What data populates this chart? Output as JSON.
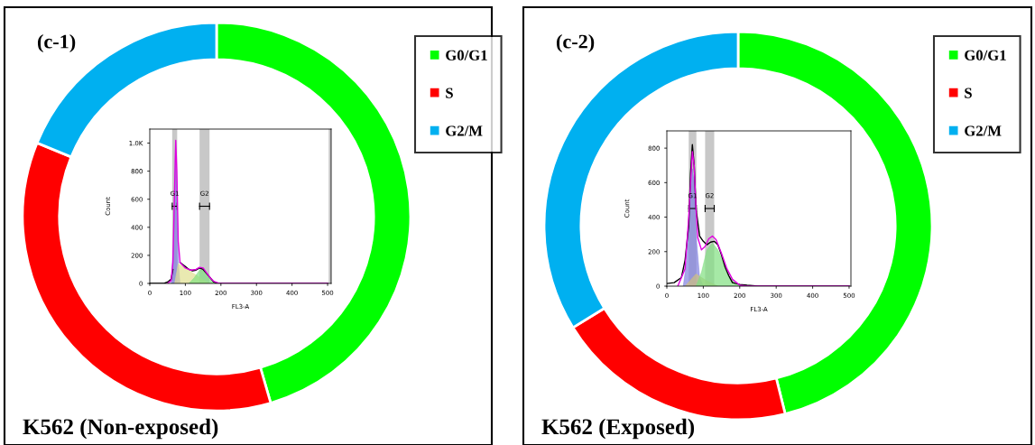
{
  "chart_data": [
    {
      "type": "donut",
      "title": "(c-1)",
      "categories": [
        "G0/G1",
        "S",
        "G2/M"
      ],
      "values": [
        45.5,
        35.7,
        18.8
      ],
      "colors": [
        "#00ff00",
        "#ff0000",
        "#00b0f0"
      ],
      "legend": "right",
      "annotations": [
        "K562 (Non-exposed)"
      ]
    },
    {
      "type": "line",
      "xlabel": "FL3-A",
      "ylabel": "Count",
      "xlim": [
        0,
        510
      ],
      "ylim": [
        0,
        1100
      ],
      "xticks": [
        0,
        100,
        200,
        300,
        400,
        500
      ],
      "yticks": [
        0,
        200,
        400,
        600,
        800,
        {
          "value": 1000,
          "label": "1.0K"
        }
      ],
      "bands": [
        {
          "axis": "x",
          "from": 63,
          "to": 77,
          "label": "G1",
          "color": "#c8c8c8"
        },
        {
          "axis": "x",
          "from": 140,
          "to": 168,
          "label": "G2",
          "color": "#c8c8c8"
        },
        {
          "axis": "x",
          "from": 503,
          "to": 510,
          "color": "#c8c8c8"
        }
      ],
      "series": [
        {
          "type": "area",
          "color": "#8080e0",
          "x": [
            60,
            67,
            72,
            76,
            80,
            85
          ],
          "values": [
            0,
            300,
            950,
            700,
            150,
            0
          ]
        },
        {
          "type": "area",
          "color": "#e0e090",
          "x": [
            70,
            80,
            100,
            130,
            160,
            170
          ],
          "values": [
            0,
            140,
            110,
            60,
            10,
            0
          ]
        },
        {
          "type": "area",
          "color": "#80e080",
          "x": [
            110,
            125,
            140,
            150,
            160,
            175,
            185
          ],
          "values": [
            0,
            40,
            95,
            100,
            60,
            15,
            0
          ]
        },
        {
          "type": "line",
          "color": "#000000",
          "x": [
            0,
            40,
            50,
            60,
            65,
            70,
            73,
            76,
            80,
            85,
            100,
            110,
            120,
            130,
            140,
            150,
            160,
            170,
            180,
            190,
            500
          ],
          "values": [
            0,
            0,
            10,
            30,
            100,
            null,
            null,
            null,
            null,
            150,
            120,
            100,
            90,
            95,
            110,
            100,
            70,
            40,
            10,
            0,
            0
          ]
        },
        {
          "type": "line",
          "color": "#e000e0",
          "x": [
            50,
            60,
            65,
            70,
            73,
            76,
            80,
            85,
            100,
            115,
            130,
            140,
            150,
            160,
            170,
            180,
            195,
            500
          ],
          "values": [
            0,
            20,
            150,
            700,
            1020,
            800,
            300,
            150,
            110,
            95,
            100,
            115,
            110,
            75,
            40,
            15,
            0,
            0
          ]
        }
      ]
    },
    {
      "type": "donut",
      "title": "(c-2)",
      "categories": [
        "G0/G1",
        "S",
        "G2/M"
      ],
      "values": [
        46.1,
        20.1,
        33.8
      ],
      "colors": [
        "#00ff00",
        "#ff0000",
        "#00b0f0"
      ],
      "legend": "right",
      "annotations": [
        "K562 (Exposed)"
      ]
    },
    {
      "type": "line",
      "xlabel": "FL3-A",
      "ylabel": "Count",
      "xlim": [
        0,
        505
      ],
      "ylim": [
        0,
        900
      ],
      "xticks": [
        0,
        100,
        200,
        300,
        400,
        500
      ],
      "yticks": [
        0,
        200,
        400,
        600,
        800
      ],
      "bands": [
        {
          "axis": "x",
          "from": 60,
          "to": 81,
          "label": "G1",
          "color": "#c8c8c8"
        },
        {
          "axis": "x",
          "from": 105,
          "to": 130,
          "label": "G2",
          "color": "#c8c8c8"
        }
      ],
      "series": [
        {
          "type": "area",
          "color": "#8080e0",
          "x": [
            45,
            55,
            62,
            70,
            75,
            82,
            90,
            100
          ],
          "values": [
            0,
            150,
            450,
            680,
            600,
            250,
            50,
            0
          ]
        },
        {
          "type": "area",
          "color": "#d0c080",
          "x": [
            50,
            80,
            110,
            140
          ],
          "values": [
            0,
            70,
            30,
            0
          ]
        },
        {
          "type": "area",
          "color": "#80e080",
          "x": [
            80,
            95,
            110,
            125,
            140,
            155,
            170,
            190,
            210
          ],
          "values": [
            0,
            80,
            210,
            250,
            210,
            140,
            60,
            10,
            0
          ]
        },
        {
          "type": "line",
          "color": "#000000",
          "x": [
            0,
            20,
            40,
            50,
            60,
            65,
            70,
            75,
            80,
            90,
            100,
            110,
            120,
            130,
            140,
            150,
            160,
            170,
            180,
            200,
            220,
            250,
            500
          ],
          "values": [
            15,
            20,
            50,
            150,
            350,
            650,
            820,
            700,
            450,
            290,
            260,
            240,
            255,
            260,
            240,
            180,
            110,
            60,
            20,
            10,
            5,
            0,
            0
          ]
        },
        {
          "type": "line",
          "color": "#e000e0",
          "x": [
            30,
            50,
            60,
            70,
            75,
            80,
            85,
            95,
            105,
            115,
            125,
            135,
            150,
            165,
            180,
            200,
            220,
            500
          ],
          "values": [
            0,
            100,
            400,
            780,
            700,
            450,
            280,
            210,
            230,
            275,
            290,
            270,
            190,
            100,
            40,
            5,
            0,
            0
          ]
        }
      ]
    }
  ]
}
